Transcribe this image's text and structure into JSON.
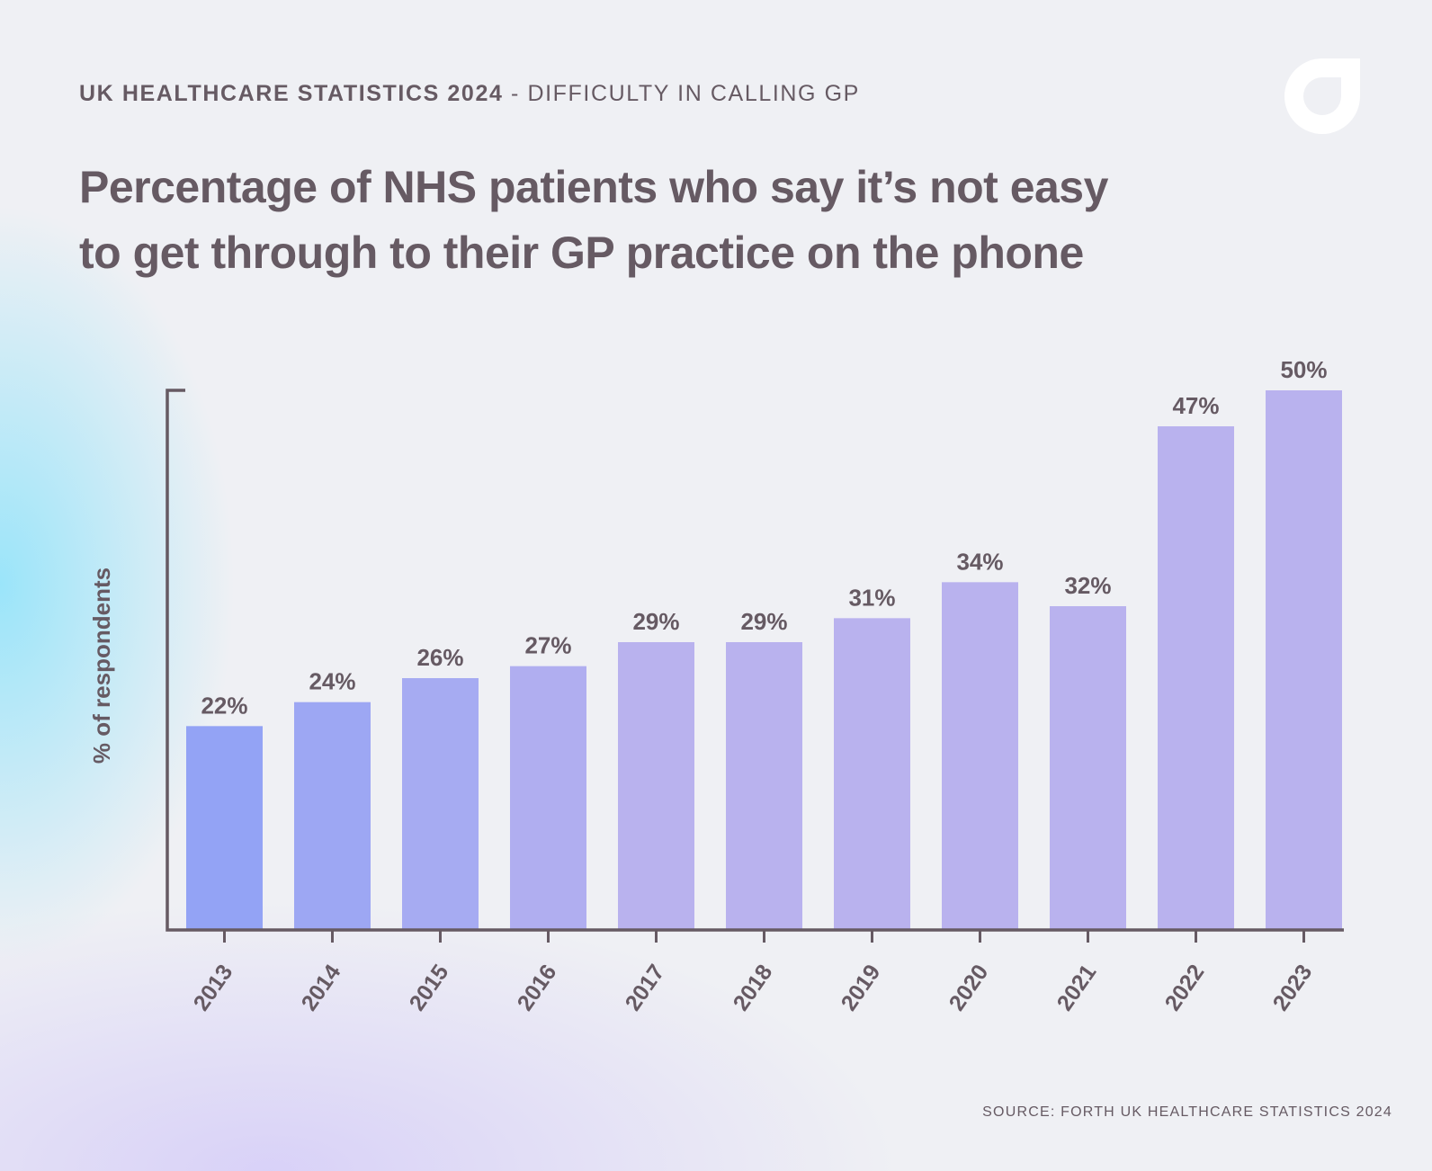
{
  "header": {
    "bold": "UK HEALTHCARE STATISTICS 2024",
    "rest": " - DIFFICULTY IN CALLING GP"
  },
  "logo": "forth-logo",
  "source": "SOURCE: FORTH UK HEALTHCARE STATISTICS 2024",
  "chart_data": {
    "type": "bar",
    "title": "Percentage of NHS patients who say it’s not easy to get through to their GP practice on the phone",
    "xlabel": "",
    "ylabel": "% of respondents",
    "categories": [
      "2013",
      "2014",
      "2015",
      "2016",
      "2017",
      "2018",
      "2019",
      "2020",
      "2021",
      "2022",
      "2023"
    ],
    "values": [
      22,
      24,
      26,
      27,
      29,
      29,
      31,
      34,
      32,
      47,
      50
    ],
    "data_labels": [
      "22%",
      "24%",
      "26%",
      "27%",
      "29%",
      "29%",
      "31%",
      "34%",
      "32%",
      "47%",
      "50%"
    ],
    "ylim": [
      5,
      50
    ],
    "grid": false,
    "colors": {
      "start": "#93a3f5",
      "end": "#b9b2ee",
      "text": "#665a63",
      "axis": "#665a63"
    }
  }
}
